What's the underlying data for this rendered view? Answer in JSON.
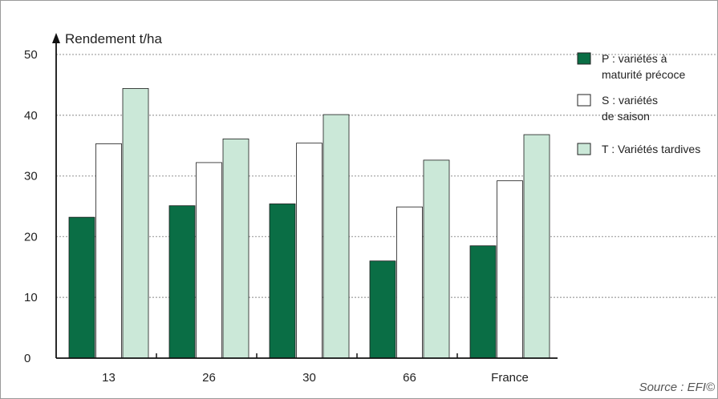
{
  "chart_data": {
    "type": "bar",
    "ylabel": "Rendement t/ha",
    "ylim": [
      0,
      50
    ],
    "yticks": [
      0,
      10,
      20,
      30,
      40,
      50
    ],
    "categories": [
      "13",
      "26",
      "30",
      "66",
      "France"
    ],
    "series": [
      {
        "name": "P : variétés à maturité précoce",
        "legend_lines": [
          "P : variétés à",
          "maturité précoce"
        ],
        "color": "#0a6e45",
        "values": [
          23.2,
          25.1,
          25.4,
          16.0,
          18.5
        ]
      },
      {
        "name": "S : variétés de saison",
        "legend_lines": [
          "S : variétés",
          "de saison"
        ],
        "color": "#ffffff",
        "values": [
          35.3,
          32.2,
          35.4,
          24.9,
          29.2
        ]
      },
      {
        "name": "T : Variétés tardives",
        "legend_lines": [
          "T : Variétés tardives"
        ],
        "color": "#cbe8d8",
        "values": [
          44.4,
          36.1,
          40.1,
          32.6,
          36.8
        ]
      }
    ],
    "grid": true,
    "legend": "right"
  },
  "source": "Source : EFI©"
}
